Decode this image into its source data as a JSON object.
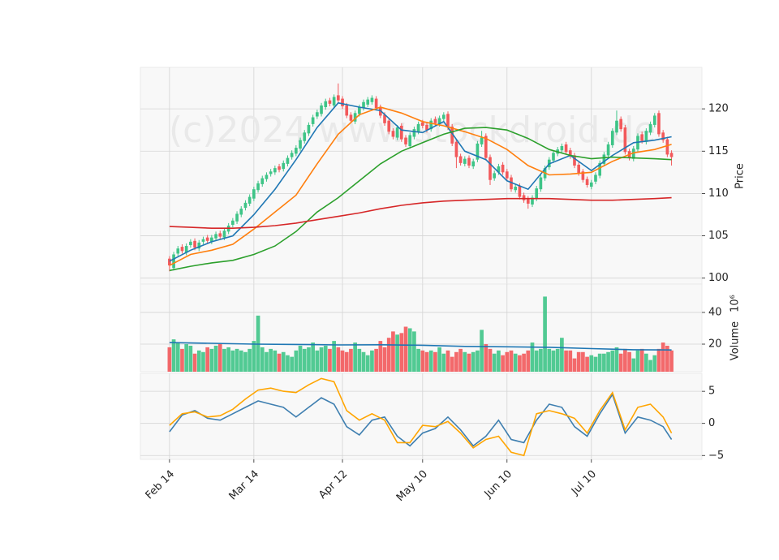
{
  "chart_data": [
    {
      "type": "candlestick",
      "watermark": "(c)2024 www.stockdroid.de",
      "y_label": "Price",
      "up_color": "#3ec487",
      "down_color": "#f2595b",
      "ylim": [
        99.3,
        124.9
      ],
      "yticks": [
        100,
        105,
        110,
        115,
        120
      ],
      "open": [
        102.3,
        101.2,
        102.9,
        103.7,
        103.0,
        103.9,
        104.4,
        103.5,
        104.3,
        104.8,
        104.3,
        104.7,
        105.3,
        104.8,
        105.5,
        106.3,
        106.7,
        107.5,
        108.3,
        108.8,
        109.4,
        110.4,
        111.1,
        111.7,
        112.3,
        112.5,
        113.2,
        112.9,
        113.5,
        114.3,
        114.7,
        115.3,
        116.2,
        117.1,
        118.2,
        119.1,
        119.4,
        120.2,
        121.0,
        120.4,
        121.6,
        121.2,
        120.4,
        119.3,
        118.5,
        119.4,
        120.1,
        120.5,
        120.8,
        121.2,
        120.2,
        119.3,
        118.6,
        117.4,
        116.6,
        118.0,
        116.6,
        115.6,
        116.7,
        117.3,
        118.4,
        118.1,
        117.6,
        118.8,
        118.2,
        118.8,
        119.4,
        117.9,
        116.1,
        114.4,
        113.5,
        114.2,
        113.2,
        114.0,
        115.8,
        116.8,
        114.3,
        111.8,
        112.5,
        113.4,
        112.6,
        111.9,
        110.4,
        110.9,
        109.8,
        109.4,
        108.7,
        109.4,
        110.5,
        111.8,
        113.1,
        113.9,
        114.7,
        115.1,
        115.8,
        115.1,
        114.5,
        113.4,
        112.6,
        111.7,
        110.8,
        111.4,
        112.1,
        113.5,
        114.5,
        115.7,
        117.2,
        118.8,
        117.8,
        115.0,
        114.1,
        115.2,
        117.0,
        116.1,
        117.2,
        118.1,
        119.5,
        117.2,
        116.4,
        114.8
      ],
      "high": [
        102.6,
        103.1,
        103.8,
        104.0,
        104.1,
        104.6,
        104.7,
        104.5,
        104.9,
        105.1,
        105.1,
        105.5,
        105.6,
        105.9,
        106.5,
        107.1,
        107.9,
        108.5,
        109.2,
        109.9,
        110.8,
        111.5,
        112.1,
        112.5,
        112.9,
        113.3,
        113.5,
        113.9,
        114.5,
        115.1,
        115.7,
        116.6,
        117.5,
        118.4,
        119.3,
        119.9,
        120.7,
        121.2,
        121.3,
        121.7,
        123.0,
        121.5,
        120.7,
        119.6,
        119.8,
        120.5,
        121.1,
        121.4,
        121.6,
        121.5,
        120.5,
        119.6,
        118.9,
        117.7,
        118.1,
        118.3,
        116.9,
        117.2,
        117.9,
        118.5,
        118.7,
        118.4,
        118.9,
        119.1,
        119.2,
        119.6,
        119.7,
        118.2,
        116.4,
        114.7,
        114.4,
        114.5,
        114.1,
        116.2,
        117.4,
        117.1,
        114.6,
        112.7,
        113.5,
        113.7,
        112.9,
        112.2,
        111.1,
        111.2,
        110.1,
        109.7,
        109.8,
        110.9,
        112.2,
        113.3,
        114.3,
        115.1,
        115.5,
        115.9,
        116.1,
        115.4,
        114.8,
        113.7,
        112.9,
        112.0,
        111.6,
        112.5,
        113.9,
        114.9,
        116.1,
        117.7,
        119.8,
        119.1,
        118.1,
        115.3,
        115.6,
        117.1,
        117.3,
        117.7,
        118.5,
        119.5,
        119.8,
        117.5,
        116.7,
        115.1
      ],
      "low": [
        100.8,
        100.9,
        102.6,
        102.9,
        102.7,
        103.6,
        103.3,
        103.2,
        104.0,
        104.1,
        104.0,
        104.4,
        104.6,
        104.5,
        105.2,
        106.0,
        106.4,
        107.2,
        108.0,
        108.5,
        109.1,
        110.1,
        110.8,
        111.4,
        112.0,
        112.2,
        112.5,
        112.6,
        113.2,
        114.0,
        114.4,
        115.0,
        115.9,
        116.8,
        117.9,
        118.8,
        119.1,
        119.9,
        120.3,
        120.1,
        120.7,
        120.0,
        118.9,
        118.3,
        118.2,
        119.1,
        119.8,
        120.2,
        120.5,
        119.8,
        118.9,
        118.0,
        117.0,
        116.4,
        116.3,
        116.1,
        115.5,
        115.3,
        116.4,
        117.0,
        117.7,
        117.2,
        117.3,
        118.0,
        117.9,
        118.5,
        117.5,
        115.6,
        113.0,
        113.3,
        113.2,
        113.0,
        112.9,
        113.7,
        115.5,
        113.9,
        111.0,
        111.5,
        112.2,
        112.2,
        111.5,
        110.2,
        110.1,
        109.3,
        108.9,
        108.2,
        108.4,
        109.1,
        110.2,
        111.5,
        112.8,
        113.6,
        114.4,
        114.8,
        114.6,
        114.1,
        113.0,
        112.1,
        111.3,
        110.7,
        110.5,
        111.1,
        111.8,
        113.2,
        114.2,
        115.4,
        116.9,
        117.3,
        114.6,
        113.9,
        113.8,
        114.9,
        115.9,
        115.8,
        116.9,
        117.8,
        116.7,
        116.0,
        114.3,
        113.3
      ],
      "close": [
        101.5,
        102.8,
        103.5,
        103.2,
        103.8,
        104.3,
        103.6,
        104.2,
        104.6,
        104.4,
        104.8,
        105.2,
        104.9,
        105.6,
        106.2,
        106.8,
        107.6,
        108.2,
        108.9,
        109.6,
        110.5,
        111.2,
        111.8,
        112.2,
        112.6,
        113.0,
        112.8,
        113.6,
        114.2,
        114.8,
        115.4,
        116.3,
        117.2,
        118.1,
        119.0,
        119.6,
        120.4,
        120.9,
        120.6,
        121.4,
        121.0,
        120.3,
        119.2,
        118.6,
        119.5,
        120.2,
        120.8,
        121.1,
        121.3,
        120.1,
        119.2,
        118.3,
        117.3,
        116.7,
        117.8,
        116.4,
        115.8,
        116.9,
        117.6,
        118.2,
        118.0,
        117.5,
        118.6,
        118.3,
        118.9,
        119.3,
        117.8,
        115.9,
        114.3,
        113.6,
        114.1,
        113.3,
        113.8,
        115.9,
        116.6,
        114.2,
        111.6,
        112.4,
        113.2,
        112.5,
        111.8,
        110.5,
        110.8,
        109.6,
        109.2,
        108.8,
        109.5,
        110.6,
        111.9,
        113.0,
        114.0,
        114.8,
        115.2,
        115.6,
        114.9,
        114.4,
        113.3,
        112.4,
        111.6,
        111.0,
        111.3,
        112.2,
        113.6,
        114.6,
        115.8,
        117.4,
        118.6,
        117.6,
        114.9,
        114.2,
        115.3,
        116.8,
        116.2,
        117.4,
        118.2,
        119.2,
        117.0,
        116.3,
        114.6,
        114.3
      ],
      "series": [
        {
          "color": "#1f77b4",
          "x": [
            0,
            5,
            10,
            15,
            20,
            25,
            30,
            35,
            40,
            45,
            50,
            55,
            60,
            65,
            70,
            75,
            80,
            85,
            90,
            95,
            100,
            105,
            110,
            115,
            119
          ],
          "values": [
            102.0,
            103.3,
            104.3,
            105.0,
            107.5,
            110.5,
            114.0,
            117.8,
            120.7,
            120.2,
            119.8,
            117.5,
            117.2,
            118.5,
            115.0,
            114.0,
            111.5,
            110.5,
            113.5,
            114.5,
            112.7,
            114.5,
            116.0,
            116.3,
            116.7
          ]
        },
        {
          "color": "#ff7f0e",
          "x": [
            0,
            5,
            10,
            15,
            20,
            25,
            30,
            35,
            40,
            45,
            50,
            55,
            60,
            65,
            70,
            75,
            80,
            85,
            90,
            95,
            100,
            105,
            110,
            115,
            119
          ],
          "values": [
            101.5,
            102.8,
            103.3,
            104.0,
            105.8,
            107.8,
            109.8,
            113.5,
            117.0,
            119.3,
            120.2,
            119.5,
            118.5,
            118.0,
            117.3,
            116.5,
            115.2,
            113.3,
            112.2,
            112.3,
            112.5,
            113.8,
            114.8,
            115.2,
            115.8
          ]
        },
        {
          "color": "#2ca02c",
          "x": [
            0,
            5,
            10,
            15,
            20,
            25,
            30,
            35,
            40,
            45,
            50,
            55,
            60,
            65,
            70,
            75,
            80,
            85,
            90,
            95,
            100,
            105,
            110,
            115,
            119
          ],
          "values": [
            100.9,
            101.4,
            101.8,
            102.1,
            102.8,
            103.8,
            105.5,
            107.8,
            109.5,
            111.5,
            113.5,
            115.0,
            116.0,
            117.0,
            117.7,
            117.8,
            117.5,
            116.5,
            115.2,
            114.5,
            114.1,
            114.3,
            114.2,
            114.1,
            114.0
          ]
        },
        {
          "color": "#d62728",
          "x": [
            0,
            5,
            10,
            15,
            20,
            25,
            30,
            35,
            40,
            45,
            50,
            55,
            60,
            65,
            70,
            75,
            80,
            85,
            90,
            95,
            100,
            105,
            110,
            115,
            119
          ],
          "values": [
            106.1,
            106.0,
            105.9,
            105.9,
            106.0,
            106.2,
            106.5,
            106.9,
            107.3,
            107.7,
            108.2,
            108.6,
            108.9,
            109.1,
            109.2,
            109.3,
            109.4,
            109.4,
            109.4,
            109.3,
            109.2,
            109.2,
            109.3,
            109.4,
            109.5
          ]
        }
      ]
    },
    {
      "type": "bar",
      "y_label": "Volume",
      "y_label_offset": "10⁶",
      "ylim": [
        2.6,
        57.9
      ],
      "yticks": [
        20,
        40
      ],
      "values": [
        18,
        23,
        21,
        17,
        20,
        19,
        14,
        16,
        15,
        18,
        17,
        19,
        20,
        17,
        18,
        16,
        17,
        16,
        15,
        17,
        22,
        38,
        18,
        15,
        17,
        16,
        14,
        15,
        13,
        12,
        16,
        19,
        17,
        18,
        21,
        16,
        18,
        19,
        17,
        22,
        18,
        16,
        15,
        17,
        21,
        17,
        15,
        13,
        16,
        17,
        22,
        18,
        24,
        28,
        26,
        27,
        31,
        30,
        28,
        17,
        16,
        15,
        16,
        15,
        18,
        14,
        16,
        12,
        15,
        17,
        15,
        14,
        15,
        16,
        29,
        20,
        17,
        14,
        16,
        13,
        15,
        16,
        14,
        13,
        14,
        16,
        21,
        16,
        17,
        50,
        17,
        16,
        17,
        24,
        16,
        16,
        11,
        15,
        15,
        12,
        13,
        12,
        14,
        14,
        15,
        16,
        18,
        14,
        17,
        15,
        11,
        16,
        17,
        14,
        10,
        13,
        17,
        21,
        19,
        16
      ],
      "series": [
        {
          "color": "#1f77b4",
          "x": [
            0,
            10,
            20,
            30,
            40,
            50,
            60,
            70,
            80,
            90,
            100,
            110,
            119
          ],
          "values": [
            21,
            20.5,
            20,
            19.8,
            19.5,
            19.6,
            19.3,
            18.6,
            18.3,
            18.0,
            17.2,
            16.5,
            16.3
          ]
        }
      ]
    },
    {
      "type": "line",
      "grid": true,
      "ylim": [
        -5.6,
        7.8
      ],
      "yticks": [
        {
          "value": -5,
          "label": "−5"
        },
        0,
        5
      ],
      "xlim": [
        -6.9,
        126.2
      ],
      "xticks": [
        {
          "value": 0,
          "label": "Feb 14"
        },
        {
          "value": 20,
          "label": "Mar 14"
        },
        {
          "value": 41,
          "label": "Apr 12"
        },
        {
          "value": 60,
          "label": "May 10"
        },
        {
          "value": 80,
          "label": "Jun 10"
        },
        {
          "value": 100,
          "label": "Jul 10"
        }
      ],
      "series": [
        {
          "color": "#3f7fb0",
          "x": [
            0,
            3,
            6,
            9,
            12,
            15,
            18,
            21,
            24,
            27,
            30,
            33,
            36,
            39,
            42,
            45,
            48,
            51,
            54,
            57,
            60,
            63,
            66,
            69,
            72,
            75,
            78,
            81,
            84,
            87,
            90,
            93,
            96,
            99,
            102,
            105,
            108,
            111,
            114,
            117,
            119
          ],
          "values": [
            -1.3,
            1.3,
            2.0,
            0.8,
            0.5,
            1.5,
            2.5,
            3.5,
            3.0,
            2.5,
            1.0,
            2.5,
            4.0,
            3.0,
            -0.5,
            -1.8,
            0.5,
            1.0,
            -2.0,
            -3.5,
            -1.5,
            -0.8,
            1.0,
            -1.0,
            -3.5,
            -2.0,
            0.5,
            -2.5,
            -3.0,
            0.5,
            3.0,
            2.5,
            -0.5,
            -2.0,
            1.5,
            4.5,
            -1.5,
            1.0,
            0.5,
            -0.5,
            -2.5
          ]
        },
        {
          "color": "#ffa500",
          "x": [
            0,
            3,
            6,
            9,
            12,
            15,
            18,
            21,
            24,
            27,
            30,
            33,
            36,
            39,
            42,
            45,
            48,
            51,
            54,
            57,
            60,
            63,
            66,
            69,
            72,
            75,
            78,
            81,
            84,
            87,
            90,
            93,
            96,
            99,
            102,
            105,
            108,
            111,
            114,
            117,
            119
          ],
          "values": [
            -0.3,
            1.5,
            1.8,
            1.0,
            1.2,
            2.2,
            3.8,
            5.2,
            5.5,
            5.0,
            4.8,
            6.0,
            7.0,
            6.5,
            2.0,
            0.5,
            1.5,
            0.5,
            -3.0,
            -3.0,
            -0.3,
            -0.5,
            0.3,
            -1.5,
            -3.8,
            -2.5,
            -2.0,
            -4.5,
            -5.0,
            1.5,
            2.0,
            1.5,
            0.8,
            -1.5,
            2.0,
            4.8,
            -1.0,
            2.5,
            3.0,
            1.0,
            -1.5
          ]
        }
      ]
    }
  ]
}
